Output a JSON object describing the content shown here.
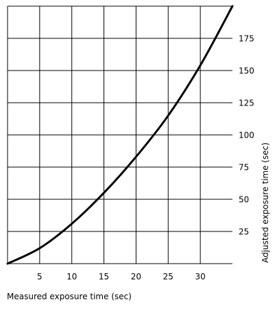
{
  "chart_data": {
    "type": "line",
    "title": "",
    "xlabel": "Measured exposure time (sec)",
    "ylabel": "Adjusted exposure time (sec)",
    "xlim": [
      0,
      35
    ],
    "ylim": [
      0,
      200
    ],
    "x_ticks": [
      5,
      10,
      15,
      20,
      25,
      30
    ],
    "y_ticks": [
      25,
      50,
      75,
      100,
      125,
      150,
      175
    ],
    "grid": true,
    "series": [
      {
        "x": [
          0,
          5,
          10,
          15,
          20,
          25,
          30,
          35
        ],
        "y": [
          0,
          12,
          31,
          55,
          83,
          115,
          154,
          200
        ]
      }
    ]
  }
}
